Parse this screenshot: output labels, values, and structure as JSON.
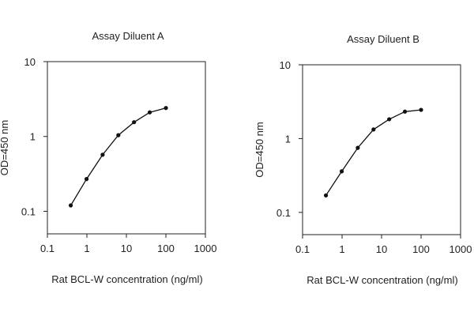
{
  "chart_data": [
    {
      "type": "line",
      "title": "Assay Diluent A",
      "xlabel": "Rat BCL-W concentration (ng/ml)",
      "ylabel": "OD=450 nm",
      "xscale": "log",
      "yscale": "log",
      "xlim": [
        0.1,
        1000
      ],
      "ylim": [
        0.05,
        10
      ],
      "x_ticks": [
        0.1,
        1,
        10,
        100,
        1000
      ],
      "x_tick_labels": [
        "0.1",
        "1",
        "10",
        "100",
        "1000"
      ],
      "y_ticks": [
        0.1,
        1,
        10
      ],
      "y_tick_labels": [
        "0.1",
        "1",
        "10"
      ],
      "grid": false,
      "x": [
        0.39,
        0.98,
        2.5,
        6.25,
        15.6,
        39,
        100
      ],
      "y": [
        0.12,
        0.27,
        0.57,
        1.04,
        1.55,
        2.1,
        2.4
      ]
    },
    {
      "type": "line",
      "title": "Assay Diluent B",
      "xlabel": "Rat BCL-W concentration (ng/ml)",
      "ylabel": "OD=450 nm",
      "xscale": "log",
      "yscale": "log",
      "xlim": [
        0.1,
        1000
      ],
      "ylim": [
        0.05,
        10
      ],
      "x_ticks": [
        0.1,
        1,
        10,
        100,
        1000
      ],
      "x_tick_labels": [
        "0.1",
        "1",
        "10",
        "100",
        "1000"
      ],
      "y_ticks": [
        0.1,
        1,
        10
      ],
      "y_tick_labels": [
        "0.1",
        "1",
        "10"
      ],
      "grid": false,
      "x": [
        0.39,
        0.98,
        2.5,
        6.25,
        15.6,
        39,
        100
      ],
      "y": [
        0.17,
        0.36,
        0.75,
        1.33,
        1.83,
        2.32,
        2.45
      ]
    }
  ]
}
